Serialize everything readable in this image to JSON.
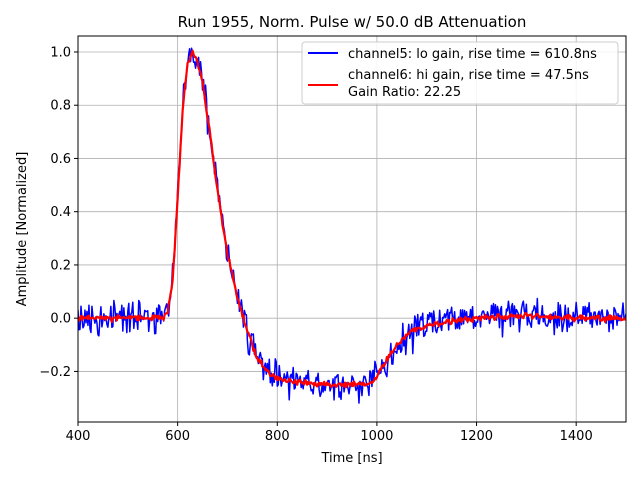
{
  "chart_data": {
    "type": "line",
    "title": "Run 1955, Norm. Pulse w/ 50.0 dB Attenuation",
    "xlabel": "Time [ns]",
    "ylabel": "Amplitude [Normalized]",
    "xlim": [
      400,
      1500
    ],
    "ylim": [
      -0.39,
      1.06
    ],
    "xticks": [
      400,
      600,
      800,
      1000,
      1200,
      1400
    ],
    "yticks": [
      -0.2,
      0.0,
      0.2,
      0.4,
      0.6,
      0.8,
      1.0
    ],
    "ytick_labels": [
      "−0.2",
      "0.0",
      "0.2",
      "0.4",
      "0.6",
      "0.8",
      "1.0"
    ],
    "grid": true,
    "legend_position": "upper-right",
    "legend_extra": "Gain Ratio: 22.25",
    "series": [
      {
        "name": "channel5: lo gain, rise time = 610.8ns",
        "color": "#0000ff",
        "noise_amplitude": 0.045,
        "x": [
          400,
          500,
          570,
          580,
          590,
          600,
          610,
          620,
          630,
          640,
          650,
          660,
          670,
          680,
          690,
          700,
          720,
          740,
          760,
          780,
          800,
          850,
          900,
          950,
          985,
          1000,
          1020,
          1040,
          1060,
          1080,
          1100,
          1150,
          1200,
          1300,
          1400,
          1500
        ],
        "y": [
          0.0,
          0.0,
          0.0,
          0.03,
          0.14,
          0.45,
          0.78,
          0.96,
          1.0,
          0.96,
          0.88,
          0.76,
          0.62,
          0.48,
          0.36,
          0.24,
          0.08,
          -0.05,
          -0.15,
          -0.2,
          -0.23,
          -0.24,
          -0.25,
          -0.25,
          -0.25,
          -0.22,
          -0.16,
          -0.1,
          -0.06,
          -0.04,
          -0.03,
          -0.01,
          0.0,
          0.01,
          0.0,
          0.0
        ]
      },
      {
        "name": "channel6: hi gain, rise time = 47.5ns",
        "color": "#ff0000",
        "noise_amplitude": 0.008,
        "x": [
          400,
          500,
          570,
          580,
          590,
          600,
          610,
          620,
          630,
          640,
          650,
          660,
          670,
          680,
          690,
          700,
          720,
          740,
          760,
          780,
          800,
          850,
          900,
          950,
          985,
          1000,
          1020,
          1040,
          1060,
          1080,
          1100,
          1150,
          1200,
          1300,
          1400,
          1500
        ],
        "y": [
          0.0,
          0.0,
          0.0,
          0.03,
          0.14,
          0.45,
          0.78,
          0.96,
          1.0,
          0.96,
          0.88,
          0.76,
          0.62,
          0.48,
          0.36,
          0.24,
          0.08,
          -0.05,
          -0.15,
          -0.2,
          -0.23,
          -0.24,
          -0.25,
          -0.25,
          -0.25,
          -0.22,
          -0.16,
          -0.1,
          -0.06,
          -0.04,
          -0.03,
          -0.01,
          0.0,
          0.01,
          0.0,
          0.0
        ]
      }
    ]
  }
}
